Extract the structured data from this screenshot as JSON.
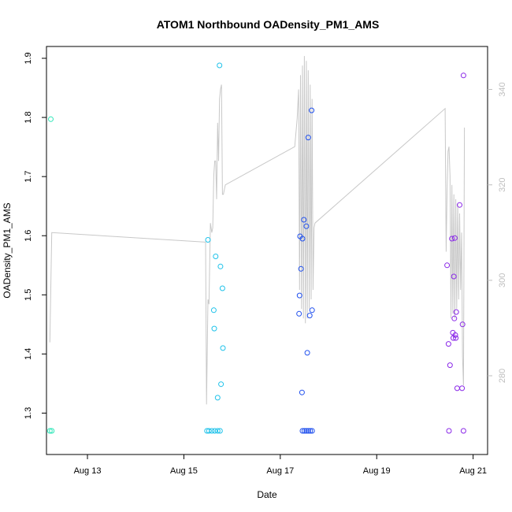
{
  "chart_data": {
    "type": "scatter",
    "title": "ATOM1 Northbound OADensity_PM1_AMS",
    "xlabel": "Date",
    "ylabel": "OADensity_PM1_AMS",
    "x_unit": "days since Aug 12 00:00",
    "xlim": [
      12.15,
      21.3
    ],
    "ylim": [
      1.23,
      1.92
    ],
    "x_ticks": [
      {
        "value": 13,
        "label": "Aug 13"
      },
      {
        "value": 15,
        "label": "Aug 15"
      },
      {
        "value": 17,
        "label": "Aug 17"
      },
      {
        "value": 19,
        "label": "Aug 19"
      },
      {
        "value": 21,
        "label": "Aug 21"
      }
    ],
    "y_ticks": [
      {
        "value": 1.3,
        "label": "1.3"
      },
      {
        "value": 1.4,
        "label": "1.4"
      },
      {
        "value": 1.5,
        "label": "1.5"
      },
      {
        "value": 1.6,
        "label": "1.6"
      },
      {
        "value": 1.7,
        "label": "1.7"
      },
      {
        "value": 1.8,
        "label": "1.8"
      },
      {
        "value": 1.9,
        "label": "1.9"
      }
    ],
    "y2lim": [
      263.5,
      349
    ],
    "y2_ticks": [
      {
        "value": 280,
        "label": "280"
      },
      {
        "value": 300,
        "label": "300"
      },
      {
        "value": 320,
        "label": "320"
      },
      {
        "value": 340,
        "label": "340"
      }
    ],
    "colors": {
      "axis": "#000000",
      "secondary": "#bebebe",
      "line": "#c8c8c8"
    },
    "points": [
      {
        "x": 12.24,
        "y": 1.797,
        "color": "#2ee6b8"
      },
      {
        "x": 12.22,
        "y": 1.27,
        "color": "#2ee6b8"
      },
      {
        "x": 12.26,
        "y": 1.27,
        "color": "#2ee6b8"
      },
      {
        "x": 15.5,
        "y": 1.593,
        "color": "#1ec2ea"
      },
      {
        "x": 15.62,
        "y": 1.474,
        "color": "#1ec2ea"
      },
      {
        "x": 15.63,
        "y": 1.443,
        "color": "#1ec2ea"
      },
      {
        "x": 15.66,
        "y": 1.565,
        "color": "#1ec2ea"
      },
      {
        "x": 15.7,
        "y": 1.326,
        "color": "#1ec2ea"
      },
      {
        "x": 15.74,
        "y": 1.888,
        "color": "#1ec2ea"
      },
      {
        "x": 15.76,
        "y": 1.548,
        "color": "#1ec2ea"
      },
      {
        "x": 15.77,
        "y": 1.349,
        "color": "#1ec2ea"
      },
      {
        "x": 15.8,
        "y": 1.511,
        "color": "#1ec2ea"
      },
      {
        "x": 15.81,
        "y": 1.41,
        "color": "#1ec2ea"
      },
      {
        "x": 15.48,
        "y": 1.27,
        "color": "#1ec2ea"
      },
      {
        "x": 15.52,
        "y": 1.27,
        "color": "#1ec2ea"
      },
      {
        "x": 15.58,
        "y": 1.27,
        "color": "#1ec2ea"
      },
      {
        "x": 15.64,
        "y": 1.27,
        "color": "#1ec2ea"
      },
      {
        "x": 15.7,
        "y": 1.27,
        "color": "#1ec2ea"
      },
      {
        "x": 15.75,
        "y": 1.27,
        "color": "#1ec2ea"
      },
      {
        "x": 17.39,
        "y": 1.468,
        "color": "#2050ee"
      },
      {
        "x": 17.4,
        "y": 1.499,
        "color": "#2050ee"
      },
      {
        "x": 17.41,
        "y": 1.599,
        "color": "#2050ee"
      },
      {
        "x": 17.43,
        "y": 1.544,
        "color": "#2050ee"
      },
      {
        "x": 17.45,
        "y": 1.335,
        "color": "#2050ee"
      },
      {
        "x": 17.46,
        "y": 1.595,
        "color": "#2050ee"
      },
      {
        "x": 17.49,
        "y": 1.627,
        "color": "#2050ee"
      },
      {
        "x": 17.54,
        "y": 1.616,
        "color": "#2050ee"
      },
      {
        "x": 17.56,
        "y": 1.402,
        "color": "#2050ee"
      },
      {
        "x": 17.58,
        "y": 1.766,
        "color": "#2050ee"
      },
      {
        "x": 17.61,
        "y": 1.465,
        "color": "#2050ee"
      },
      {
        "x": 17.65,
        "y": 1.812,
        "color": "#2050ee"
      },
      {
        "x": 17.66,
        "y": 1.474,
        "color": "#2050ee"
      },
      {
        "x": 17.46,
        "y": 1.27,
        "color": "#2050ee"
      },
      {
        "x": 17.5,
        "y": 1.27,
        "color": "#2050ee"
      },
      {
        "x": 17.54,
        "y": 1.27,
        "color": "#2050ee"
      },
      {
        "x": 17.58,
        "y": 1.27,
        "color": "#2050ee"
      },
      {
        "x": 17.62,
        "y": 1.27,
        "color": "#2050ee"
      },
      {
        "x": 17.66,
        "y": 1.27,
        "color": "#2050ee"
      },
      {
        "x": 20.46,
        "y": 1.55,
        "color": "#8a28e8"
      },
      {
        "x": 20.49,
        "y": 1.417,
        "color": "#8a28e8"
      },
      {
        "x": 20.52,
        "y": 1.381,
        "color": "#8a28e8"
      },
      {
        "x": 20.56,
        "y": 1.595,
        "color": "#8a28e8"
      },
      {
        "x": 20.58,
        "y": 1.436,
        "color": "#8a28e8"
      },
      {
        "x": 20.59,
        "y": 1.427,
        "color": "#8a28e8"
      },
      {
        "x": 20.6,
        "y": 1.531,
        "color": "#8a28e8"
      },
      {
        "x": 20.61,
        "y": 1.46,
        "color": "#8a28e8"
      },
      {
        "x": 20.62,
        "y": 1.596,
        "color": "#8a28e8"
      },
      {
        "x": 20.63,
        "y": 1.432,
        "color": "#8a28e8"
      },
      {
        "x": 20.64,
        "y": 1.427,
        "color": "#8a28e8"
      },
      {
        "x": 20.65,
        "y": 1.471,
        "color": "#8a28e8"
      },
      {
        "x": 20.67,
        "y": 1.342,
        "color": "#8a28e8"
      },
      {
        "x": 20.72,
        "y": 1.652,
        "color": "#8a28e8"
      },
      {
        "x": 20.77,
        "y": 1.342,
        "color": "#8a28e8"
      },
      {
        "x": 20.78,
        "y": 1.45,
        "color": "#8a28e8"
      },
      {
        "x": 20.8,
        "y": 1.871,
        "color": "#8a28e8"
      },
      {
        "x": 20.5,
        "y": 1.27,
        "color": "#8a28e8"
      },
      {
        "x": 20.8,
        "y": 1.27,
        "color": "#8a28e8"
      }
    ],
    "line_series": {
      "name": "secondary axis",
      "color": "#c8c8c8",
      "x": [
        12.22,
        12.26,
        15.45,
        15.47,
        15.5,
        15.52,
        15.55,
        15.58,
        15.6,
        15.62,
        15.64,
        15.66,
        15.68,
        15.7,
        15.72,
        15.74,
        15.76,
        15.78,
        15.8,
        15.82,
        15.84,
        15.86,
        17.3,
        17.35,
        17.38,
        17.4,
        17.42,
        17.44,
        17.46,
        17.48,
        17.5,
        17.52,
        17.54,
        17.56,
        17.58,
        17.6,
        17.62,
        17.64,
        17.66,
        17.68,
        17.7,
        17.72,
        20.42,
        20.44,
        20.46,
        20.48,
        20.5,
        20.52,
        20.54,
        20.56,
        20.58,
        20.6,
        20.62,
        20.64,
        20.66,
        20.68,
        20.7,
        20.72,
        20.74,
        20.76,
        20.78,
        20.8,
        20.82
      ],
      "y": [
        287,
        310,
        308,
        274,
        296,
        295,
        312,
        310,
        311,
        322,
        325,
        325,
        317,
        333,
        325,
        338,
        340,
        341,
        318,
        318,
        319,
        320,
        328,
        334,
        340,
        298,
        343,
        294,
        345,
        292,
        347,
        291,
        346,
        292,
        344,
        294,
        341,
        296,
        338,
        298,
        311,
        312,
        336,
        306,
        319,
        327,
        328,
        322,
        292,
        320,
        293,
        318,
        292,
        317,
        294,
        316,
        296,
        314,
        298,
        310,
        284,
        278,
        332
      ]
    }
  }
}
